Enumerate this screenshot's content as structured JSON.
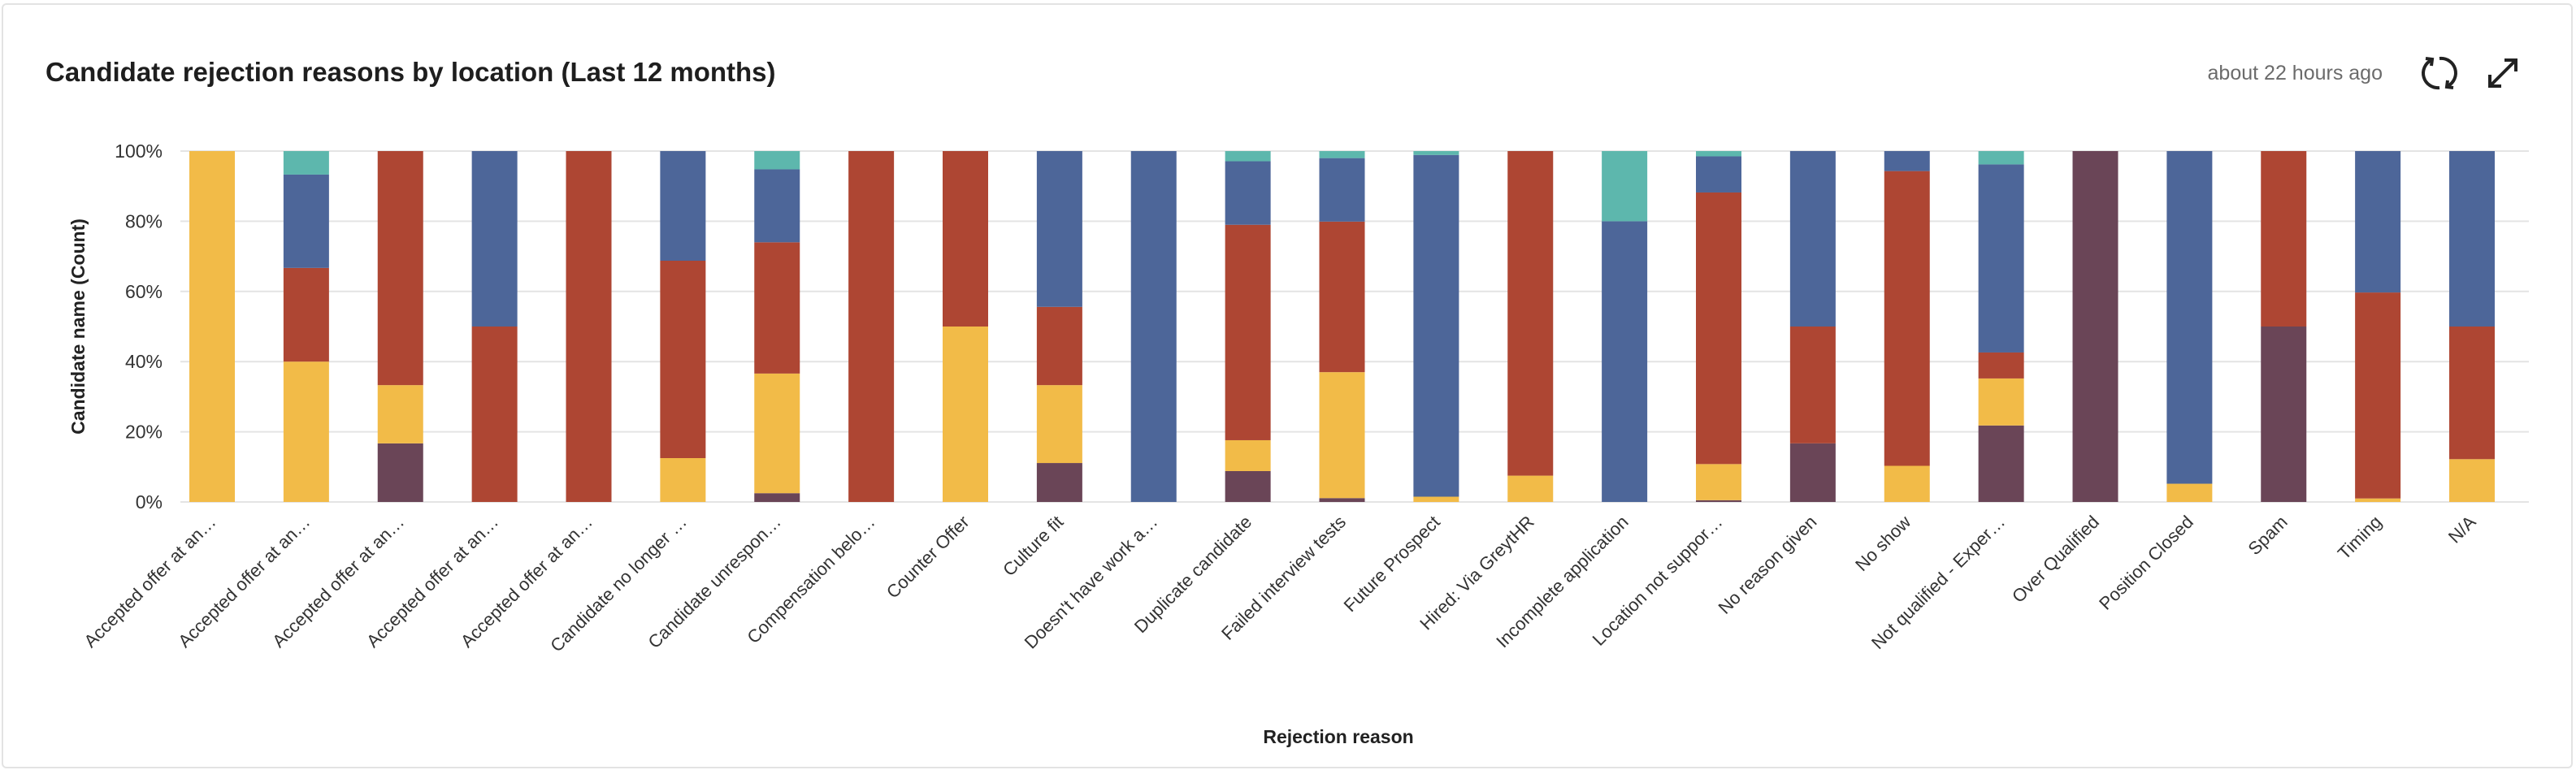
{
  "header": {
    "title": "Candidate rejection reasons by location (Last 12 months)",
    "updated": "about 22 hours ago",
    "refresh_icon": "refresh-icon",
    "expand_icon": "expand-icon"
  },
  "chart_data": {
    "type": "bar",
    "stacked": true,
    "normalized": true,
    "title": "Candidate rejection reasons by location (Last 12 months)",
    "xlabel": "Rejection reason",
    "ylabel": "Candidate name (Count)",
    "ylim": [
      0,
      100
    ],
    "yticks": [
      "0%",
      "20%",
      "40%",
      "60%",
      "80%",
      "100%"
    ],
    "grid": true,
    "legend": "none",
    "categories": [
      "Accepted offer at an…",
      "Accepted offer at an…",
      "Accepted offer at an…",
      "Accepted offer at an…",
      "Accepted offer at an…",
      "Candidate no longer …",
      "Candidate unrespon…",
      "Compensation belo…",
      "Counter Offer",
      "Culture fit",
      "Doesn't have work a…",
      "Duplicate candidate",
      "Failed interview tests",
      "Future Prospect",
      "Hired: Via GreytHR",
      "Incomplete application",
      "Location not suppor…",
      "No reason given",
      "No show",
      "Not qualified - Exper…",
      "Over Qualified",
      "Position Closed",
      "Spam",
      "Timing",
      "N/A"
    ],
    "series": [
      {
        "color": "#6a4557",
        "values": [
          0,
          0,
          16.7,
          0,
          0,
          0,
          2.5,
          0,
          0,
          11.1,
          0,
          8.8,
          1.1,
          0,
          0,
          0,
          0.5,
          16.7,
          0,
          21.8,
          100,
          0,
          50,
          0,
          0
        ]
      },
      {
        "color": "#f2bb48",
        "values": [
          100,
          40,
          16.6,
          0,
          0,
          12.5,
          34.1,
          0,
          50,
          22.2,
          0,
          8.8,
          35.9,
          1.5,
          7.5,
          0,
          10.3,
          0,
          10.3,
          13.4,
          0,
          5.2,
          0,
          1,
          12.2
        ]
      },
      {
        "color": "#ae4633",
        "values": [
          0,
          26.7,
          66.7,
          50,
          100,
          56.25,
          37.4,
          100,
          50,
          22.3,
          0,
          61.4,
          42.9,
          0,
          92.5,
          0,
          77.4,
          33.3,
          84,
          7.4,
          0,
          0,
          50,
          58.7,
          37.8
        ]
      },
      {
        "color": "#4d6699",
        "values": [
          0,
          26.6,
          0,
          50,
          0,
          31.25,
          20.8,
          0,
          0,
          44.4,
          100,
          18.1,
          18.1,
          97.4,
          0,
          80,
          10.3,
          50,
          5.7,
          53.6,
          0,
          94.8,
          0,
          40.3,
          50
        ]
      },
      {
        "color": "#5db7ad",
        "values": [
          0,
          6.7,
          0,
          0,
          0,
          0,
          5.2,
          0,
          0,
          0,
          0,
          2.9,
          2,
          1.1,
          0,
          20,
          1.5,
          0,
          0,
          3.8,
          0,
          0,
          0,
          0,
          0
        ]
      }
    ]
  }
}
